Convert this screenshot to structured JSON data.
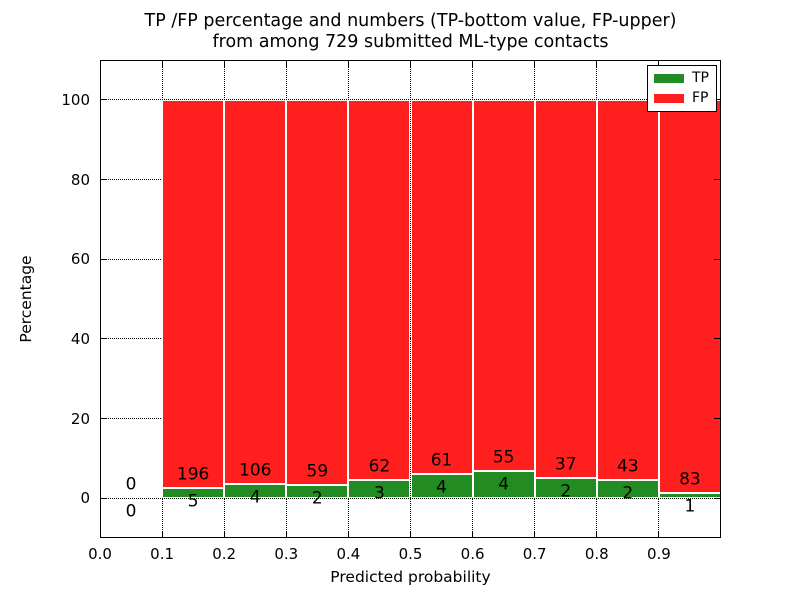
{
  "title": {
    "line1": "TP /FP percentage and numbers (TP-bottom value, FP-upper)",
    "line2": "from among 729 submitted ML-type contacts"
  },
  "chart_data": {
    "type": "bar",
    "stacked": true,
    "units": "percent-of-bin",
    "title": "TP /FP percentage and numbers (TP-bottom value, FP-upper) from among 729 submitted ML-type contacts",
    "title_lines": [
      "TP /FP percentage and numbers (TP-bottom value, FP-upper)",
      "from among 729 submitted ML-type contacts"
    ],
    "xlabel": "Predicted probability",
    "ylabel": "Percentage",
    "xlim": [
      0.0,
      1.0
    ],
    "ylim": [
      -10,
      110
    ],
    "xticklabels": [
      "0.0",
      "0.1",
      "0.2",
      "0.3",
      "0.4",
      "0.5",
      "0.6",
      "0.7",
      "0.8",
      "0.9"
    ],
    "yticks": [
      0,
      20,
      40,
      60,
      80,
      100
    ],
    "grid": "dotted",
    "legend_position": "upper-right",
    "total_contacts": 729,
    "legend": [
      {
        "label": "TP",
        "color": "#228b22"
      },
      {
        "label": "FP",
        "color": "#ff1f1f"
      }
    ],
    "bins": [
      {
        "x0": 0.0,
        "x1": 0.1,
        "tp": 0,
        "fp": 0
      },
      {
        "x0": 0.1,
        "x1": 0.2,
        "tp": 5,
        "fp": 196
      },
      {
        "x0": 0.2,
        "x1": 0.3,
        "tp": 4,
        "fp": 106
      },
      {
        "x0": 0.3,
        "x1": 0.4,
        "tp": 2,
        "fp": 59
      },
      {
        "x0": 0.4,
        "x1": 0.5,
        "tp": 3,
        "fp": 62
      },
      {
        "x0": 0.5,
        "x1": 0.6,
        "tp": 4,
        "fp": 61
      },
      {
        "x0": 0.6,
        "x1": 0.7,
        "tp": 4,
        "fp": 55
      },
      {
        "x0": 0.7,
        "x1": 0.8,
        "tp": 2,
        "fp": 37
      },
      {
        "x0": 0.8,
        "x1": 0.9,
        "tp": 2,
        "fp": 43
      },
      {
        "x0": 0.9,
        "x1": 1.0,
        "tp": 1,
        "fp": 83
      }
    ],
    "colors": {
      "tp": "#228b22",
      "fp": "#ff1f1f",
      "grid": "#000000",
      "frame": "#000000",
      "text": "#000000"
    }
  }
}
